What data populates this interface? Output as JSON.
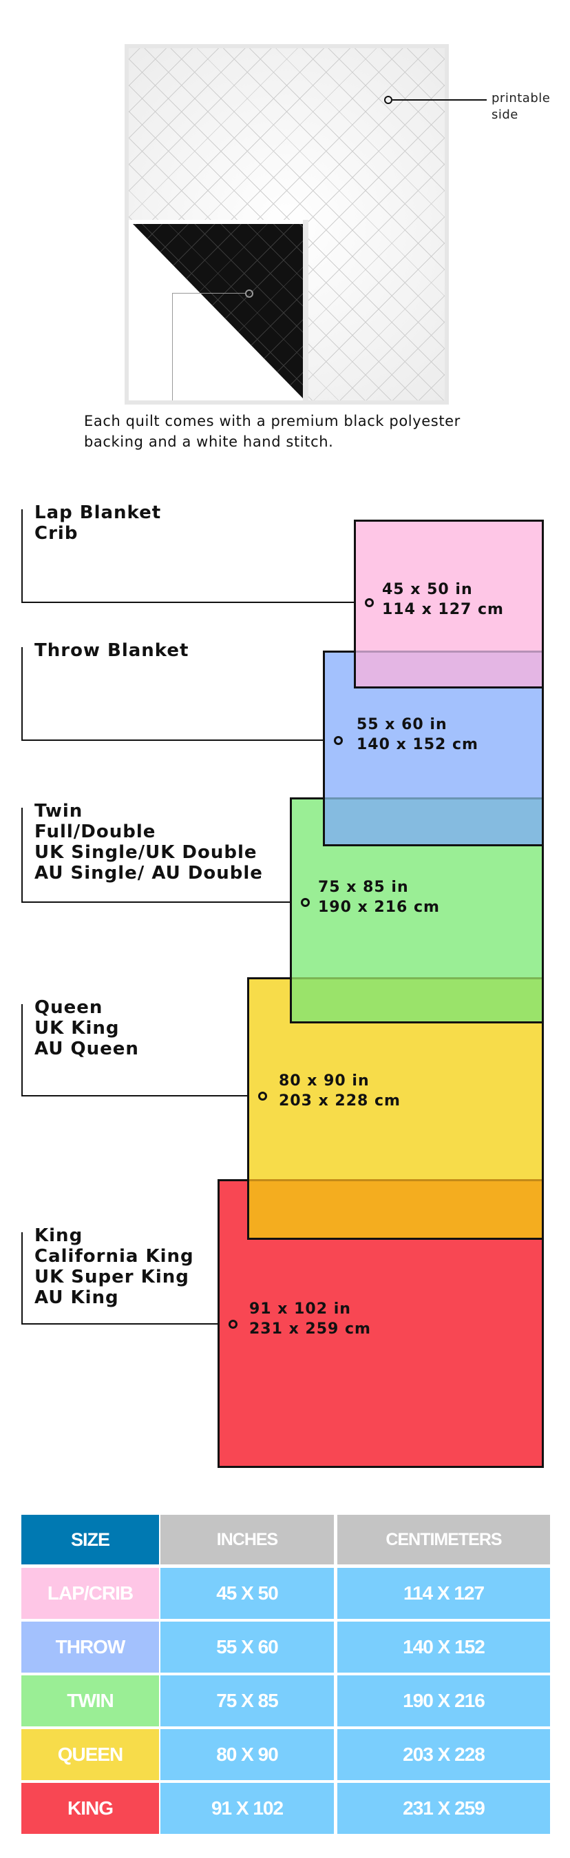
{
  "quilt": {
    "printable_label": "printable side",
    "caption_line1": "Each quilt comes with a premium black polyester",
    "caption_line2": "backing and a white hand stitch."
  },
  "sizes": [
    {
      "names": "Lap Blanket\nCrib",
      "inches": "45 x 50 in",
      "cm": "114 x 127 cm",
      "color": "#fec6e6"
    },
    {
      "names": "Throw Blanket",
      "inches": "55 x 60 in",
      "cm": "140 x 152 cm",
      "color": "#a3c1fd"
    },
    {
      "names": "Twin\nFull/Double\nUK Single/UK Double\nAU Single/ AU Double",
      "inches": "75 x 85 in",
      "cm": "190 x 216 cm",
      "color": "#9aee95"
    },
    {
      "names": "Queen\nUK King\nAU Queen",
      "inches": "80 x 90 in",
      "cm": "203 x 228 cm",
      "color": "#f7dc4a"
    },
    {
      "names": "King\nCalifornia King\nUK Super King\nAU King",
      "inches": "91 x 102 in",
      "cm": "231 x 259 cm",
      "color": "#f84753"
    }
  ],
  "overlap_colors": [
    "#e4b6e4",
    "#85bbe0",
    "#9ae36a",
    "#f4ad1f"
  ],
  "table": {
    "headers": [
      "SIZE",
      "INCHES",
      "CENTIMETERS"
    ],
    "header_colors": {
      "size": "#0079b2",
      "other": "#c4c4c4"
    },
    "value_color": "#7acefd",
    "rows": [
      {
        "size": "LAP/CRIB",
        "inches": "45 X 50",
        "cm": "114 X 127",
        "color": "#fec6e6"
      },
      {
        "size": "THROW",
        "inches": "55 X 60",
        "cm": "140 X 152",
        "color": "#a3c1fd"
      },
      {
        "size": "TWIN",
        "inches": "75 X 85",
        "cm": "190 X 216",
        "color": "#9aee95"
      },
      {
        "size": "QUEEN",
        "inches": "80 X 90",
        "cm": "203 X 228",
        "color": "#f7dc4a"
      },
      {
        "size": "KING",
        "inches": "91 X 102",
        "cm": "231 X 259",
        "color": "#f84753"
      }
    ]
  }
}
